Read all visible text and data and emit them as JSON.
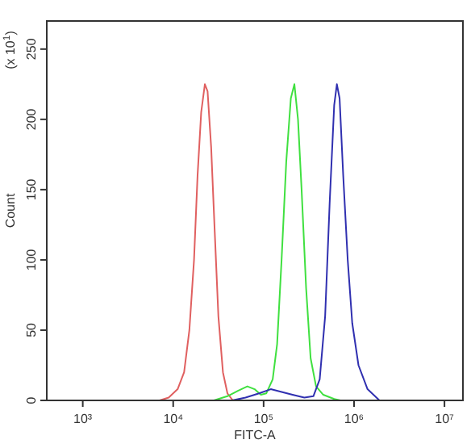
{
  "chart_data": {
    "type": "line",
    "xlabel": "FITC-A",
    "ylabel": "Count",
    "annotations": [
      "(x 10$^{1}$)"
    ],
    "log": "x",
    "xlim": [
      400,
      16000000
    ],
    "xticks": [
      {
        "value": 1000,
        "label": "10³"
      },
      {
        "value": 10000,
        "label": "10⁴"
      },
      {
        "value": 100000,
        "label": "10⁵"
      },
      {
        "value": 1000000,
        "label": "10⁶"
      },
      {
        "value": 10000000,
        "label": "10⁷"
      }
    ],
    "ylim": [
      0,
      270
    ],
    "yticks": [
      0,
      50,
      100,
      150,
      200,
      250
    ],
    "grid": false,
    "marker": "none",
    "line_style": "solid",
    "series": [
      {
        "color": "#e06060",
        "x": [
          7080,
          8910,
          11200,
          13200,
          15100,
          17000,
          18600,
          20400,
          22400,
          24000,
          26300,
          28800,
          31600,
          35500,
          39800,
          45700
        ],
        "values": [
          0,
          2,
          8,
          20,
          50,
          100,
          160,
          205,
          225,
          220,
          180,
          120,
          60,
          20,
          5,
          0
        ]
      },
      {
        "color": "#40e040",
        "x": [
          28200,
          39800,
          52500,
          66100,
          79400,
          93300,
          107000,
          126000,
          141000,
          158000,
          178000,
          200000,
          219000,
          240000,
          263000,
          295000,
          331000,
          380000,
          457000,
          603000,
          708000
        ],
        "values": [
          0,
          3,
          7,
          10,
          8,
          4,
          5,
          15,
          40,
          100,
          170,
          215,
          225,
          200,
          150,
          80,
          30,
          10,
          4,
          1,
          0
        ]
      },
      {
        "color": "#3030b0",
        "x": [
          44700,
          63100,
          89100,
          120000,
          158000,
          209000,
          282000,
          355000,
          417000,
          479000,
          537000,
          603000,
          646000,
          692000,
          759000,
          851000,
          955000,
          1120000,
          1410000,
          1910000
        ],
        "values": [
          0,
          2,
          5,
          8,
          6,
          4,
          2,
          3,
          15,
          60,
          140,
          210,
          225,
          215,
          160,
          100,
          55,
          25,
          8,
          0
        ]
      }
    ]
  }
}
